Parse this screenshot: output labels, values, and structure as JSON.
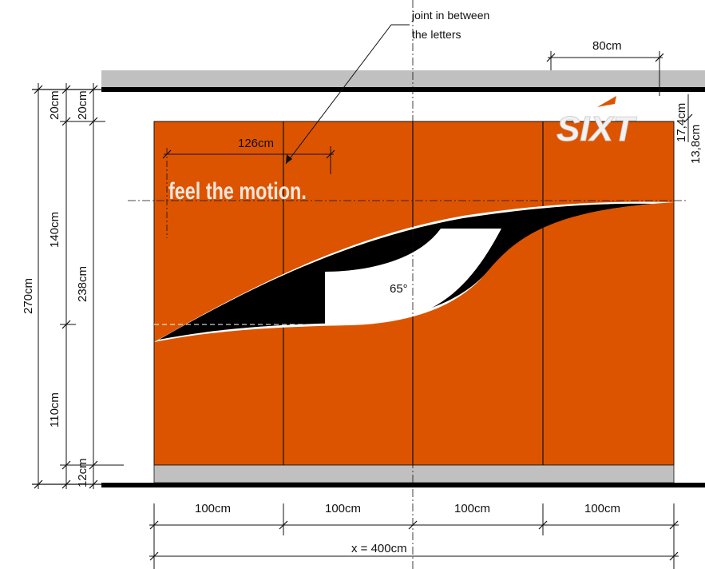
{
  "annotations": {
    "joint_line1": "joint in between",
    "joint_line2": "the letters",
    "angle": "65°"
  },
  "branding": {
    "slogan": "feel the motion.",
    "logo_text": "SIXT"
  },
  "dimensions": {
    "logo_width": "80cm",
    "logo_height_a": "17,4cm",
    "logo_height_b": "13,8cm",
    "slogan_width": "126cm",
    "top_gap_outer": "20cm",
    "top_gap_inner": "20cm",
    "total_height": "270cm",
    "graphic_height": "140cm",
    "panel_height": "238cm",
    "lower_height": "110cm",
    "base_height": "12cm",
    "panel_width_1": "100cm",
    "panel_width_2": "100cm",
    "panel_width_3": "100cm",
    "panel_width_4": "100cm",
    "total_width": "x = 400cm"
  },
  "colors": {
    "panel": "#dd5400",
    "rail": "#c0c0c0",
    "beam": "#000000",
    "stroke": "#111111",
    "swoosh": "#000000",
    "highlight": "#ffffff",
    "slogan": "#f2e6dc"
  }
}
